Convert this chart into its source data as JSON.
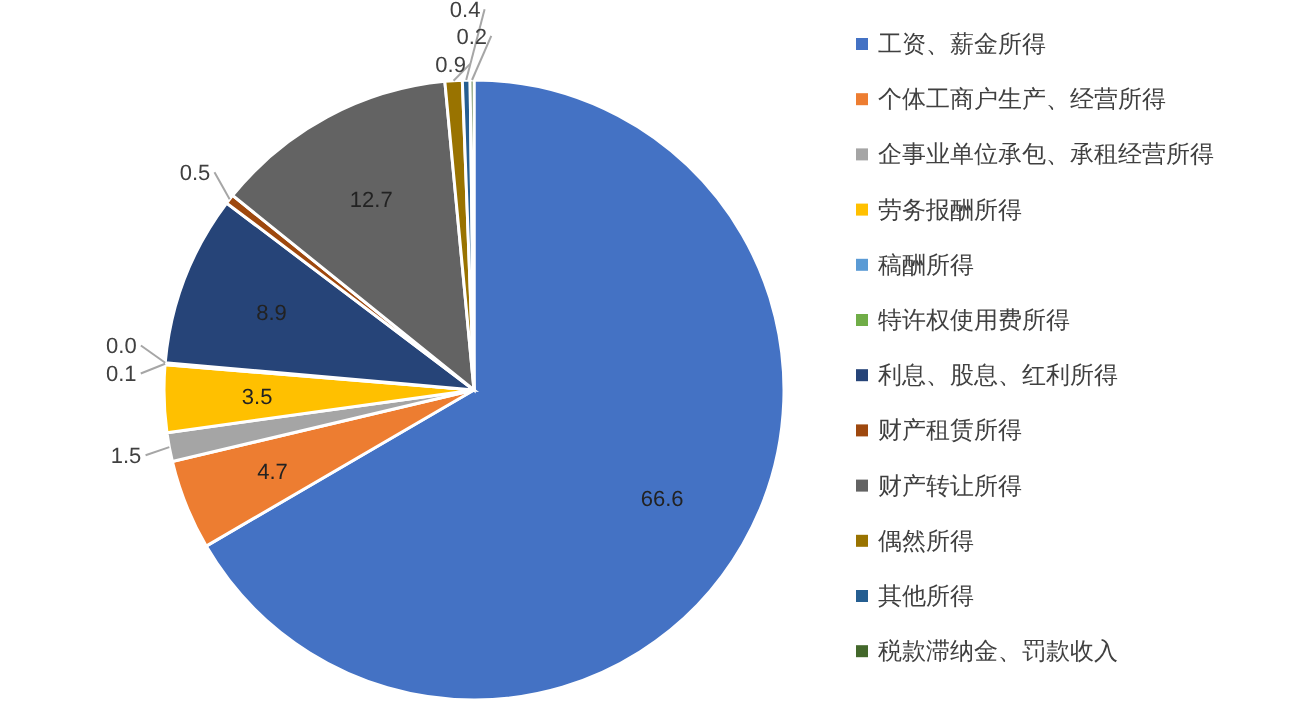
{
  "chart_data": {
    "type": "pie",
    "categories": [
      "工资、薪金所得",
      "个体工商户生产、经营所得",
      "企事业单位承包、承租经营所得",
      "劳务报酬所得",
      "稿酬所得",
      "特许权使用费所得",
      "利息、股息、红利所得",
      "财产租赁所得",
      "财产转让所得",
      "偶然所得",
      "其他所得",
      "税款滞纳金、罚款收入"
    ],
    "values": [
      66.6,
      4.7,
      1.5,
      3.5,
      0.1,
      0.0,
      8.9,
      0.5,
      12.7,
      0.9,
      0.4,
      0.2
    ],
    "value_labels": [
      "66.6",
      "4.7",
      "1.5",
      "3.5",
      "0.1",
      "0.0",
      "8.9",
      "0.5",
      "12.7",
      "0.9",
      "0.4",
      "0.2"
    ],
    "colors": [
      "#4472c4",
      "#ed7d31",
      "#a5a5a5",
      "#ffc000",
      "#5b9bd5",
      "#70ad47",
      "#264478",
      "#9e480e",
      "#636363",
      "#997300",
      "#255e91",
      "#43682b"
    ],
    "legend": "right"
  }
}
